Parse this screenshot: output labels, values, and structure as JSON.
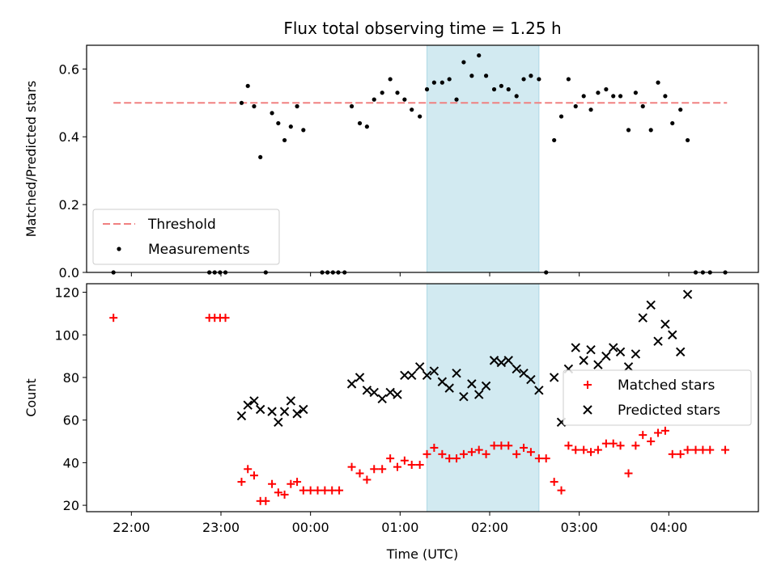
{
  "title": "Flux total observing time = 1.25 h",
  "chart_data": [
    {
      "type": "scatter",
      "panel": "top",
      "ylabel": "Matched/Predicted stars",
      "xlabel": "",
      "ylim": [
        0,
        0.67
      ],
      "yticks": [
        0.0,
        0.2,
        0.4,
        0.6
      ],
      "ytick_labels": [
        "0.0",
        "0.2",
        "0.4",
        "0.6"
      ],
      "x_range_hours": [
        -2.5,
        5.0
      ],
      "highlight_span": {
        "x_start": 1.3,
        "x_end": 2.55,
        "color": "#add8e6"
      },
      "legend_position": "lower-left",
      "threshold": {
        "name": "Threshold",
        "value": 0.5,
        "x_start": -2.2,
        "x_end": 4.65,
        "color": "#f08080"
      },
      "series": [
        {
          "name": "Measurements",
          "color": "#000000",
          "points": [
            [
              -2.2,
              0.0
            ],
            [
              -1.13,
              0.0
            ],
            [
              -1.07,
              0.0
            ],
            [
              -1.01,
              0.0
            ],
            [
              -0.95,
              0.0
            ],
            [
              -0.77,
              0.5
            ],
            [
              -0.7,
              0.55
            ],
            [
              -0.63,
              0.49
            ],
            [
              -0.56,
              0.34
            ],
            [
              -0.5,
              0.0
            ],
            [
              -0.43,
              0.47
            ],
            [
              -0.36,
              0.44
            ],
            [
              -0.29,
              0.39
            ],
            [
              -0.22,
              0.43
            ],
            [
              -0.15,
              0.49
            ],
            [
              -0.08,
              0.42
            ],
            [
              0.13,
              0.0
            ],
            [
              0.19,
              0.0
            ],
            [
              0.25,
              0.0
            ],
            [
              0.31,
              0.0
            ],
            [
              0.38,
              0.0
            ],
            [
              0.46,
              0.49
            ],
            [
              0.55,
              0.44
            ],
            [
              0.63,
              0.43
            ],
            [
              0.71,
              0.51
            ],
            [
              0.8,
              0.53
            ],
            [
              0.89,
              0.57
            ],
            [
              0.97,
              0.53
            ],
            [
              1.05,
              0.51
            ],
            [
              1.13,
              0.48
            ],
            [
              1.22,
              0.46
            ],
            [
              1.3,
              0.54
            ],
            [
              1.38,
              0.56
            ],
            [
              1.47,
              0.56
            ],
            [
              1.55,
              0.57
            ],
            [
              1.63,
              0.51
            ],
            [
              1.71,
              0.62
            ],
            [
              1.8,
              0.58
            ],
            [
              1.88,
              0.64
            ],
            [
              1.96,
              0.58
            ],
            [
              2.05,
              0.54
            ],
            [
              2.13,
              0.55
            ],
            [
              2.21,
              0.54
            ],
            [
              2.3,
              0.52
            ],
            [
              2.38,
              0.57
            ],
            [
              2.46,
              0.58
            ],
            [
              2.55,
              0.57
            ],
            [
              2.63,
              0.0
            ],
            [
              2.72,
              0.39
            ],
            [
              2.8,
              0.46
            ],
            [
              2.88,
              0.57
            ],
            [
              2.96,
              0.49
            ],
            [
              3.05,
              0.52
            ],
            [
              3.13,
              0.48
            ],
            [
              3.21,
              0.53
            ],
            [
              3.3,
              0.54
            ],
            [
              3.38,
              0.52
            ],
            [
              3.46,
              0.52
            ],
            [
              3.55,
              0.42
            ],
            [
              3.63,
              0.53
            ],
            [
              3.71,
              0.49
            ],
            [
              3.8,
              0.42
            ],
            [
              3.88,
              0.56
            ],
            [
              3.96,
              0.52
            ],
            [
              4.04,
              0.44
            ],
            [
              4.13,
              0.48
            ],
            [
              4.21,
              0.39
            ],
            [
              4.3,
              0.0
            ],
            [
              4.38,
              0.0
            ],
            [
              4.46,
              0.0
            ],
            [
              4.63,
              0.0
            ]
          ]
        }
      ]
    },
    {
      "type": "scatter",
      "panel": "bottom",
      "ylabel": "Count",
      "xlabel": "Time (UTC)",
      "ylim": [
        17,
        124
      ],
      "yticks": [
        20,
        40,
        60,
        80,
        100,
        120
      ],
      "ytick_labels": [
        "20",
        "40",
        "60",
        "80",
        "100",
        "120"
      ],
      "x_range_hours": [
        -2.5,
        5.0
      ],
      "xticks_hours": [
        -2,
        -1,
        0,
        1,
        2,
        3,
        4
      ],
      "xtick_labels": [
        "22:00",
        "23:00",
        "00:00",
        "01:00",
        "02:00",
        "03:00",
        "04:00"
      ],
      "highlight_span": {
        "x_start": 1.3,
        "x_end": 2.55,
        "color": "#add8e6"
      },
      "legend_position": "center-right",
      "series": [
        {
          "name": "Matched stars",
          "marker": "plus",
          "color": "#ff0000",
          "points": [
            [
              -2.2,
              108
            ],
            [
              -1.13,
              108
            ],
            [
              -1.07,
              108
            ],
            [
              -1.01,
              108
            ],
            [
              -0.95,
              108
            ],
            [
              -0.77,
              31
            ],
            [
              -0.7,
              37
            ],
            [
              -0.63,
              34
            ],
            [
              -0.56,
              22
            ],
            [
              -0.5,
              22
            ],
            [
              -0.43,
              30
            ],
            [
              -0.36,
              26
            ],
            [
              -0.29,
              25
            ],
            [
              -0.22,
              30
            ],
            [
              -0.15,
              31
            ],
            [
              -0.08,
              27
            ],
            [
              0.0,
              27
            ],
            [
              0.08,
              27
            ],
            [
              0.16,
              27
            ],
            [
              0.24,
              27
            ],
            [
              0.32,
              27
            ],
            [
              0.46,
              38
            ],
            [
              0.55,
              35
            ],
            [
              0.63,
              32
            ],
            [
              0.71,
              37
            ],
            [
              0.8,
              37
            ],
            [
              0.89,
              42
            ],
            [
              0.97,
              38
            ],
            [
              1.05,
              41
            ],
            [
              1.13,
              39
            ],
            [
              1.22,
              39
            ],
            [
              1.3,
              44
            ],
            [
              1.38,
              47
            ],
            [
              1.47,
              44
            ],
            [
              1.55,
              42
            ],
            [
              1.63,
              42
            ],
            [
              1.71,
              44
            ],
            [
              1.8,
              45
            ],
            [
              1.88,
              46
            ],
            [
              1.96,
              44
            ],
            [
              2.05,
              48
            ],
            [
              2.13,
              48
            ],
            [
              2.21,
              48
            ],
            [
              2.3,
              44
            ],
            [
              2.38,
              47
            ],
            [
              2.46,
              45
            ],
            [
              2.55,
              42
            ],
            [
              2.63,
              42
            ],
            [
              2.72,
              31
            ],
            [
              2.8,
              27
            ],
            [
              2.88,
              48
            ],
            [
              2.96,
              46
            ],
            [
              3.05,
              46
            ],
            [
              3.13,
              45
            ],
            [
              3.21,
              46
            ],
            [
              3.3,
              49
            ],
            [
              3.38,
              49
            ],
            [
              3.46,
              48
            ],
            [
              3.55,
              35
            ],
            [
              3.63,
              48
            ],
            [
              3.71,
              53
            ],
            [
              3.8,
              50
            ],
            [
              3.88,
              54
            ],
            [
              3.96,
              55
            ],
            [
              4.04,
              44
            ],
            [
              4.13,
              44
            ],
            [
              4.21,
              46
            ],
            [
              4.3,
              46
            ],
            [
              4.38,
              46
            ],
            [
              4.46,
              46
            ],
            [
              4.63,
              46
            ]
          ]
        },
        {
          "name": "Predicted stars",
          "marker": "x",
          "color": "#000000",
          "points": [
            [
              -0.77,
              62
            ],
            [
              -0.7,
              67
            ],
            [
              -0.63,
              69
            ],
            [
              -0.56,
              65
            ],
            [
              -0.43,
              64
            ],
            [
              -0.36,
              59
            ],
            [
              -0.29,
              64
            ],
            [
              -0.22,
              69
            ],
            [
              -0.15,
              63
            ],
            [
              -0.08,
              65
            ],
            [
              0.46,
              77
            ],
            [
              0.55,
              80
            ],
            [
              0.63,
              74
            ],
            [
              0.71,
              73
            ],
            [
              0.8,
              70
            ],
            [
              0.89,
              73
            ],
            [
              0.97,
              72
            ],
            [
              1.05,
              81
            ],
            [
              1.13,
              81
            ],
            [
              1.22,
              85
            ],
            [
              1.3,
              81
            ],
            [
              1.38,
              83
            ],
            [
              1.47,
              78
            ],
            [
              1.55,
              75
            ],
            [
              1.63,
              82
            ],
            [
              1.71,
              71
            ],
            [
              1.8,
              77
            ],
            [
              1.88,
              72
            ],
            [
              1.96,
              76
            ],
            [
              2.05,
              88
            ],
            [
              2.13,
              87
            ],
            [
              2.21,
              88
            ],
            [
              2.3,
              84
            ],
            [
              2.38,
              82
            ],
            [
              2.46,
              79
            ],
            [
              2.55,
              74
            ],
            [
              2.72,
              80
            ],
            [
              2.8,
              59
            ],
            [
              2.88,
              84
            ],
            [
              2.96,
              94
            ],
            [
              3.05,
              88
            ],
            [
              3.13,
              93
            ],
            [
              3.21,
              86
            ],
            [
              3.3,
              90
            ],
            [
              3.38,
              94
            ],
            [
              3.46,
              92
            ],
            [
              3.55,
              85
            ],
            [
              3.63,
              91
            ],
            [
              3.71,
              108
            ],
            [
              3.8,
              114
            ],
            [
              3.88,
              97
            ],
            [
              3.96,
              105
            ],
            [
              4.04,
              100
            ],
            [
              4.13,
              92
            ],
            [
              4.21,
              119
            ]
          ]
        }
      ]
    }
  ]
}
